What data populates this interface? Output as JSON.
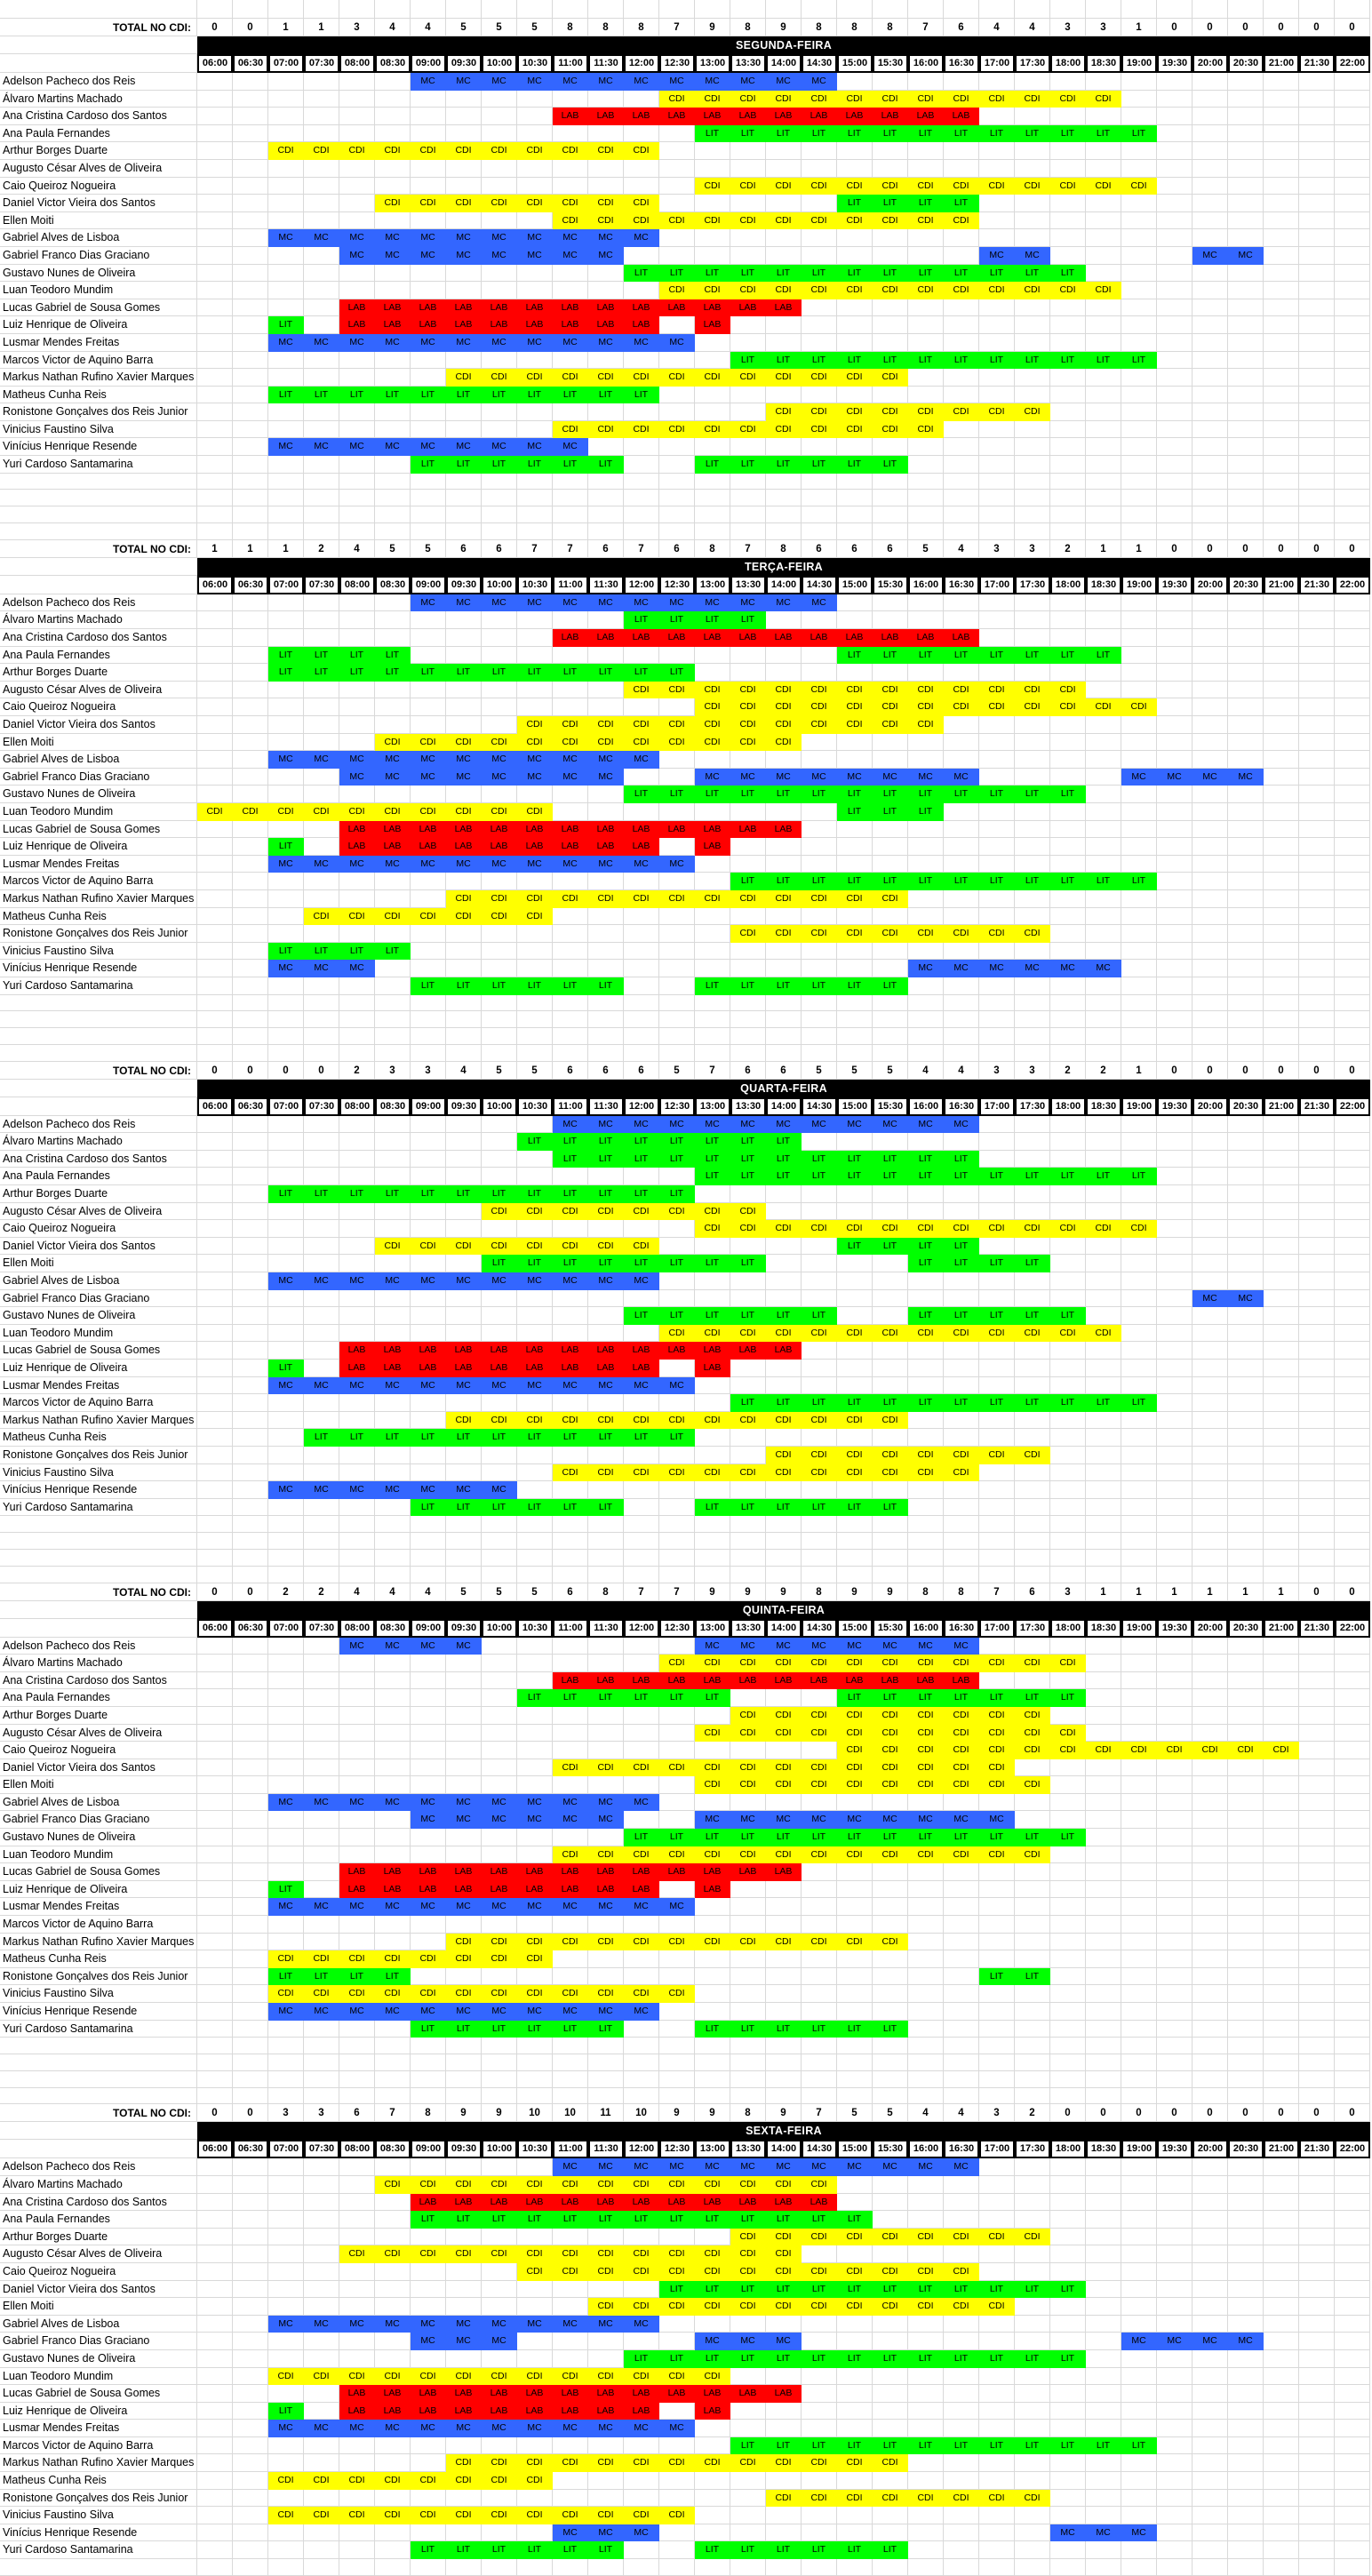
{
  "sheet": {
    "totals_label": "TOTAL NO CDI:",
    "grid_color": "#D9D9D9",
    "banner_bg": "#000000",
    "banner_text_color": "#FFFFFF"
  },
  "codes": {
    "MC": "#3366FF",
    "CDI": "#FFFF00",
    "LAB": "#FF0000",
    "LIT": "#00FF00"
  },
  "times": [
    "06:00",
    "06:30",
    "07:00",
    "07:30",
    "08:00",
    "08:30",
    "09:00",
    "09:30",
    "10:00",
    "10:30",
    "11:00",
    "11:30",
    "12:00",
    "12:30",
    "13:00",
    "13:30",
    "14:00",
    "14:30",
    "15:00",
    "15:30",
    "16:00",
    "16:30",
    "17:00",
    "17:30",
    "18:00",
    "18:30",
    "19:00",
    "19:30",
    "20:00",
    "20:30",
    "21:00",
    "21:30",
    "22:00"
  ],
  "people": [
    "Adelson Pacheco dos Reis",
    "Álvaro Martins Machado",
    "Ana Cristina Cardoso dos Santos",
    "Ana Paula Fernandes",
    "Arthur Borges Duarte",
    "Augusto César Alves de Oliveira",
    "Caio Queiroz Nogueira",
    "Daniel Victor Vieira dos Santos",
    "Ellen Moiti",
    "Gabriel Alves de Lisboa",
    "Gabriel Franco Dias Graciano",
    "Gustavo Nunes de Oliveira",
    "Luan Teodoro Mundim",
    "Lucas Gabriel de Sousa Gomes",
    "Luiz Henrique de Oliveira",
    "Lusmar Mendes Freitas",
    "Marcos Victor de Aquino Barra",
    "Markus Nathan Rufino Xavier Marques",
    "Matheus Cunha Reis",
    "Ronistone Gonçalves dos Reis Junior",
    "Vinicius Faustino Silva",
    "Vinícius Henrique Resende",
    "Yuri Cardoso Santamarina"
  ],
  "days": [
    {
      "name": "SEGUNDA-FEIRA",
      "totals": [
        0,
        0,
        1,
        1,
        3,
        4,
        4,
        5,
        5,
        5,
        8,
        8,
        8,
        7,
        9,
        8,
        9,
        8,
        8,
        8,
        7,
        6,
        4,
        4,
        3,
        3,
        1,
        0,
        0,
        0,
        0,
        0,
        0
      ],
      "schedule": [
        [
          [
            "MC",
            "09:00",
            "14:30"
          ]
        ],
        [
          [
            "CDI",
            "12:30",
            "18:30"
          ]
        ],
        [
          [
            "LAB",
            "11:00",
            "16:30"
          ]
        ],
        [
          [
            "LIT",
            "13:00",
            "19:00"
          ]
        ],
        [
          [
            "CDI",
            "07:00",
            "12:00"
          ]
        ],
        [],
        [
          [
            "CDI",
            "13:00",
            "19:00"
          ]
        ],
        [
          [
            "CDI",
            "08:30",
            "12:00"
          ],
          [
            "LIT",
            "15:00",
            "16:30"
          ]
        ],
        [
          [
            "CDI",
            "11:00",
            "16:30"
          ]
        ],
        [
          [
            "MC",
            "07:00",
            "12:00"
          ]
        ],
        [
          [
            "MC",
            "08:00",
            "11:30"
          ],
          [
            "MC",
            "17:00",
            "17:30"
          ],
          [
            "MC",
            "20:00",
            "20:30"
          ]
        ],
        [
          [
            "LIT",
            "12:00",
            "18:00"
          ]
        ],
        [
          [
            "CDI",
            "12:30",
            "18:30"
          ]
        ],
        [
          [
            "LAB",
            "08:00",
            "14:00"
          ]
        ],
        [
          [
            "LIT",
            "07:00",
            "07:00"
          ],
          [
            "LAB",
            "08:00",
            "12:00"
          ],
          [
            "LAB",
            "13:00",
            "13:00"
          ]
        ],
        [
          [
            "MC",
            "07:00",
            "12:30"
          ]
        ],
        [
          [
            "LIT",
            "13:30",
            "19:00"
          ]
        ],
        [
          [
            "CDI",
            "09:30",
            "15:30"
          ]
        ],
        [
          [
            "LIT",
            "07:00",
            "12:00"
          ]
        ],
        [
          [
            "CDI",
            "14:00",
            "17:30"
          ]
        ],
        [
          [
            "CDI",
            "11:00",
            "16:00"
          ]
        ],
        [
          [
            "MC",
            "07:00",
            "11:00"
          ]
        ],
        [
          [
            "LIT",
            "09:00",
            "11:30"
          ],
          [
            "LIT",
            "13:00",
            "15:30"
          ]
        ]
      ]
    },
    {
      "name": "TERÇA-FEIRA",
      "totals": [
        1,
        1,
        1,
        2,
        4,
        5,
        5,
        6,
        6,
        7,
        7,
        6,
        7,
        6,
        8,
        7,
        8,
        6,
        6,
        6,
        5,
        4,
        3,
        3,
        2,
        1,
        1,
        0,
        0,
        0,
        0,
        0,
        0
      ],
      "schedule": [
        [
          [
            "MC",
            "09:00",
            "14:30"
          ]
        ],
        [
          [
            "LIT",
            "12:00",
            "13:30"
          ]
        ],
        [
          [
            "LAB",
            "11:00",
            "16:30"
          ]
        ],
        [
          [
            "LIT",
            "07:00",
            "08:30"
          ],
          [
            "LIT",
            "15:00",
            "18:30"
          ]
        ],
        [
          [
            "LIT",
            "07:00",
            "12:30"
          ]
        ],
        [
          [
            "CDI",
            "12:00",
            "18:00"
          ]
        ],
        [
          [
            "CDI",
            "13:00",
            "19:00"
          ]
        ],
        [
          [
            "CDI",
            "10:30",
            "16:00"
          ]
        ],
        [
          [
            "CDI",
            "08:30",
            "14:00"
          ]
        ],
        [
          [
            "MC",
            "07:00",
            "12:00"
          ]
        ],
        [
          [
            "MC",
            "08:00",
            "11:30"
          ],
          [
            "MC",
            "13:00",
            "16:30"
          ],
          [
            "MC",
            "19:00",
            "20:30"
          ]
        ],
        [
          [
            "LIT",
            "12:00",
            "18:00"
          ]
        ],
        [
          [
            "CDI",
            "06:00",
            "10:30"
          ],
          [
            "LIT",
            "15:00",
            "16:00"
          ]
        ],
        [
          [
            "LAB",
            "08:00",
            "14:00"
          ]
        ],
        [
          [
            "LIT",
            "07:00",
            "07:00"
          ],
          [
            "LAB",
            "08:00",
            "12:00"
          ],
          [
            "LAB",
            "13:00",
            "13:00"
          ]
        ],
        [
          [
            "MC",
            "07:00",
            "12:30"
          ]
        ],
        [
          [
            "LIT",
            "13:30",
            "19:00"
          ]
        ],
        [
          [
            "CDI",
            "09:30",
            "15:30"
          ]
        ],
        [
          [
            "CDI",
            "07:30",
            "10:30"
          ]
        ],
        [
          [
            "CDI",
            "13:30",
            "17:30"
          ]
        ],
        [
          [
            "LIT",
            "07:00",
            "08:30"
          ]
        ],
        [
          [
            "MC",
            "07:00",
            "08:00"
          ],
          [
            "MC",
            "16:00",
            "18:30"
          ]
        ],
        [
          [
            "LIT",
            "09:00",
            "11:30"
          ],
          [
            "LIT",
            "13:00",
            "15:30"
          ]
        ]
      ]
    },
    {
      "name": "QUARTA-FEIRA",
      "totals": [
        0,
        0,
        0,
        0,
        2,
        3,
        3,
        4,
        5,
        5,
        6,
        6,
        6,
        5,
        7,
        6,
        6,
        5,
        5,
        5,
        4,
        4,
        3,
        3,
        2,
        2,
        1,
        0,
        0,
        0,
        0,
        0,
        0
      ],
      "schedule": [
        [
          [
            "MC",
            "11:00",
            "16:30"
          ]
        ],
        [
          [
            "LIT",
            "10:30",
            "14:00"
          ]
        ],
        [
          [
            "LIT",
            "11:00",
            "16:30"
          ]
        ],
        [
          [
            "LIT",
            "13:00",
            "19:00"
          ]
        ],
        [
          [
            "LIT",
            "07:00",
            "12:30"
          ]
        ],
        [
          [
            "CDI",
            "10:00",
            "13:30"
          ]
        ],
        [
          [
            "CDI",
            "13:00",
            "19:00"
          ]
        ],
        [
          [
            "CDI",
            "08:30",
            "12:00"
          ],
          [
            "LIT",
            "15:00",
            "16:30"
          ]
        ],
        [
          [
            "LIT",
            "10:00",
            "13:30"
          ],
          [
            "LIT",
            "16:00",
            "17:30"
          ]
        ],
        [
          [
            "MC",
            "07:00",
            "12:00"
          ]
        ],
        [
          [
            "MC",
            "20:00",
            "20:30"
          ]
        ],
        [
          [
            "LIT",
            "12:00",
            "14:30"
          ],
          [
            "LIT",
            "16:00",
            "18:00"
          ]
        ],
        [
          [
            "CDI",
            "12:30",
            "18:30"
          ]
        ],
        [
          [
            "LAB",
            "08:00",
            "14:00"
          ]
        ],
        [
          [
            "LIT",
            "07:00",
            "07:00"
          ],
          [
            "LAB",
            "08:00",
            "12:00"
          ],
          [
            "LAB",
            "13:00",
            "13:00"
          ]
        ],
        [
          [
            "MC",
            "07:00",
            "12:30"
          ]
        ],
        [
          [
            "LIT",
            "13:30",
            "19:00"
          ]
        ],
        [
          [
            "CDI",
            "09:30",
            "15:30"
          ]
        ],
        [
          [
            "LIT",
            "07:30",
            "12:30"
          ]
        ],
        [
          [
            "CDI",
            "14:00",
            "17:30"
          ]
        ],
        [
          [
            "CDI",
            "11:00",
            "16:30"
          ]
        ],
        [
          [
            "MC",
            "07:00",
            "10:00"
          ]
        ],
        [
          [
            "LIT",
            "09:00",
            "11:30"
          ],
          [
            "LIT",
            "13:00",
            "15:30"
          ]
        ]
      ]
    },
    {
      "name": "QUINTA-FEIRA",
      "totals": [
        0,
        0,
        2,
        2,
        4,
        4,
        4,
        5,
        5,
        5,
        6,
        8,
        7,
        7,
        9,
        9,
        9,
        8,
        9,
        9,
        8,
        8,
        7,
        6,
        3,
        1,
        1,
        1,
        1,
        1,
        1,
        0,
        0
      ],
      "schedule": [
        [
          [
            "MC",
            "08:00",
            "09:30"
          ],
          [
            "MC",
            "13:00",
            "16:30"
          ]
        ],
        [
          [
            "CDI",
            "12:30",
            "18:00"
          ]
        ],
        [
          [
            "LAB",
            "11:00",
            "16:30"
          ]
        ],
        [
          [
            "LIT",
            "10:30",
            "13:00"
          ],
          [
            "LIT",
            "15:00",
            "18:00"
          ]
        ],
        [
          [
            "CDI",
            "13:30",
            "17:30"
          ]
        ],
        [
          [
            "CDI",
            "13:00",
            "18:00"
          ]
        ],
        [
          [
            "CDI",
            "15:00",
            "21:00"
          ]
        ],
        [
          [
            "CDI",
            "11:00",
            "17:00"
          ]
        ],
        [
          [
            "CDI",
            "13:00",
            "17:30"
          ]
        ],
        [
          [
            "MC",
            "07:00",
            "12:00"
          ]
        ],
        [
          [
            "MC",
            "09:00",
            "11:30"
          ],
          [
            "MC",
            "13:00",
            "17:00"
          ]
        ],
        [
          [
            "LIT",
            "12:00",
            "18:00"
          ]
        ],
        [
          [
            "CDI",
            "11:00",
            "17:30"
          ]
        ],
        [
          [
            "LAB",
            "08:00",
            "14:00"
          ]
        ],
        [
          [
            "LIT",
            "07:00",
            "07:00"
          ],
          [
            "LAB",
            "08:00",
            "12:00"
          ],
          [
            "LAB",
            "13:00",
            "13:00"
          ]
        ],
        [
          [
            "MC",
            "07:00",
            "12:30"
          ]
        ],
        [],
        [
          [
            "CDI",
            "09:30",
            "15:30"
          ]
        ],
        [
          [
            "CDI",
            "07:00",
            "10:30"
          ]
        ],
        [
          [
            "LIT",
            "07:00",
            "08:30"
          ],
          [
            "LIT",
            "17:00",
            "17:30"
          ]
        ],
        [
          [
            "CDI",
            "07:00",
            "12:30"
          ]
        ],
        [
          [
            "MC",
            "07:00",
            "12:00"
          ]
        ],
        [
          [
            "LIT",
            "09:00",
            "11:30"
          ],
          [
            "LIT",
            "13:00",
            "15:30"
          ]
        ]
      ]
    },
    {
      "name": "SEXTA-FEIRA",
      "totals": [
        0,
        0,
        3,
        3,
        6,
        7,
        8,
        9,
        9,
        10,
        10,
        11,
        10,
        9,
        9,
        8,
        9,
        7,
        5,
        5,
        4,
        4,
        3,
        2,
        0,
        0,
        0,
        0,
        0,
        0,
        0,
        0,
        0
      ],
      "schedule": [
        [
          [
            "MC",
            "11:00",
            "16:30"
          ]
        ],
        [
          [
            "CDI",
            "08:30",
            "14:30"
          ]
        ],
        [
          [
            "LAB",
            "09:00",
            "14:30"
          ]
        ],
        [
          [
            "LIT",
            "09:00",
            "15:00"
          ]
        ],
        [
          [
            "CDI",
            "13:30",
            "17:30"
          ]
        ],
        [
          [
            "CDI",
            "08:00",
            "14:00"
          ]
        ],
        [
          [
            "CDI",
            "10:30",
            "16:30"
          ]
        ],
        [
          [
            "LIT",
            "12:30",
            "18:00"
          ]
        ],
        [
          [
            "CDI",
            "11:30",
            "17:00"
          ]
        ],
        [
          [
            "MC",
            "07:00",
            "12:00"
          ]
        ],
        [
          [
            "MC",
            "09:00",
            "10:00"
          ],
          [
            "MC",
            "13:00",
            "14:00"
          ],
          [
            "MC",
            "19:00",
            "20:30"
          ]
        ],
        [
          [
            "LIT",
            "12:00",
            "18:00"
          ]
        ],
        [
          [
            "CDI",
            "07:00",
            "13:00"
          ]
        ],
        [
          [
            "LAB",
            "08:00",
            "14:00"
          ]
        ],
        [
          [
            "LIT",
            "07:00",
            "07:00"
          ],
          [
            "LAB",
            "08:00",
            "12:00"
          ],
          [
            "LAB",
            "13:00",
            "13:00"
          ]
        ],
        [
          [
            "MC",
            "07:00",
            "12:30"
          ]
        ],
        [
          [
            "LIT",
            "13:30",
            "19:00"
          ]
        ],
        [
          [
            "CDI",
            "09:30",
            "15:30"
          ]
        ],
        [
          [
            "CDI",
            "07:00",
            "10:30"
          ]
        ],
        [
          [
            "CDI",
            "14:00",
            "17:30"
          ]
        ],
        [
          [
            "CDI",
            "07:00",
            "12:30"
          ]
        ],
        [
          [
            "MC",
            "11:00",
            "12:00"
          ],
          [
            "MC",
            "18:00",
            "19:00"
          ]
        ],
        [
          [
            "LIT",
            "09:00",
            "11:30"
          ],
          [
            "LIT",
            "13:00",
            "15:30"
          ]
        ]
      ]
    }
  ]
}
